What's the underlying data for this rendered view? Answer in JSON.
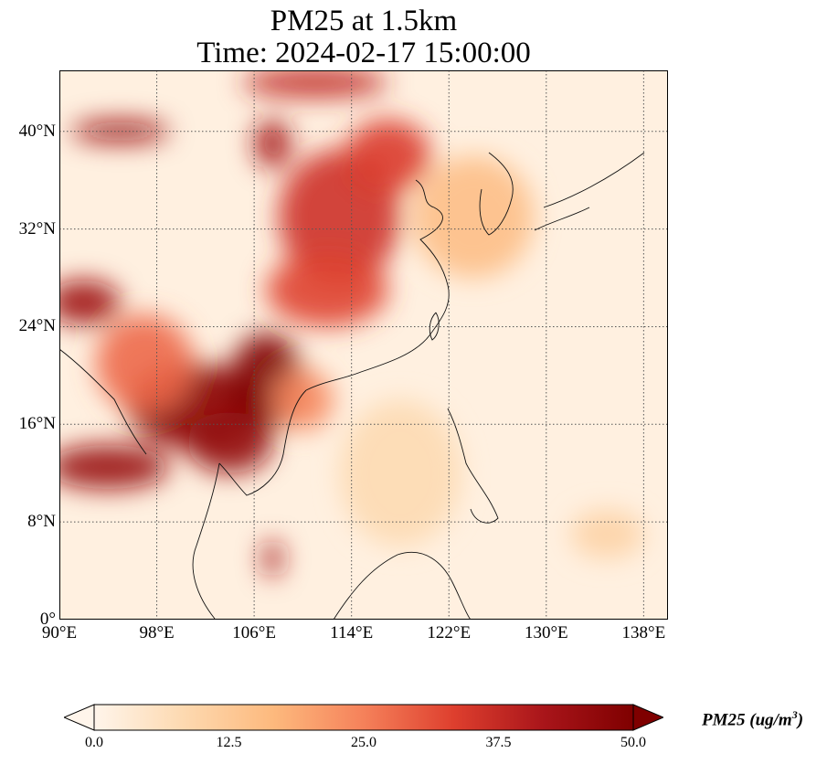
{
  "title": {
    "line1": "PM25 at 1.5km",
    "line2": "Time: 2024-02-17 15:00:00"
  },
  "map": {
    "lon_range": [
      90,
      140
    ],
    "lat_range": [
      0,
      45
    ],
    "lat_ticks": [
      {
        "value": 0,
        "label": "0°"
      },
      {
        "value": 8,
        "label": "8°N"
      },
      {
        "value": 16,
        "label": "16°N"
      },
      {
        "value": 24,
        "label": "24°N"
      },
      {
        "value": 32,
        "label": "32°N"
      },
      {
        "value": 40,
        "label": "40°N"
      }
    ],
    "lon_ticks": [
      {
        "value": 90,
        "label": "90°E"
      },
      {
        "value": 98,
        "label": "98°E"
      },
      {
        "value": 106,
        "label": "106°E"
      },
      {
        "value": 114,
        "label": "114°E"
      },
      {
        "value": 122,
        "label": "122°E"
      },
      {
        "value": 130,
        "label": "130°E"
      },
      {
        "value": 138,
        "label": "138°E"
      }
    ],
    "grid": "dotted",
    "plumes": [
      {
        "lon": 101,
        "lat": 17.5,
        "rlon": 5.5,
        "rlat": 3.5,
        "v": 48
      },
      {
        "lon": 107,
        "lat": 19.5,
        "rlon": 3,
        "rlat": 4,
        "v": 50
      },
      {
        "lon": 104,
        "lat": 14.5,
        "rlon": 3.5,
        "rlat": 2.5,
        "v": 46
      },
      {
        "lon": 94,
        "lat": 12.5,
        "rlon": 5,
        "rlat": 1.8,
        "v": 45
      },
      {
        "lon": 92,
        "lat": 26,
        "rlon": 3,
        "rlat": 1.8,
        "v": 44
      },
      {
        "lon": 95,
        "lat": 40,
        "rlon": 4,
        "rlat": 0.9,
        "v": 45
      },
      {
        "lon": 113,
        "lat": 33,
        "rlon": 5,
        "rlat": 5.5,
        "v": 36
      },
      {
        "lon": 117,
        "lat": 38,
        "rlon": 3.5,
        "rlat": 3,
        "v": 34
      },
      {
        "lon": 112,
        "lat": 27,
        "rlon": 5,
        "rlat": 3,
        "v": 33
      },
      {
        "lon": 111,
        "lat": 44,
        "rlon": 6,
        "rlat": 1.2,
        "v": 38
      },
      {
        "lon": 107.5,
        "lat": 39,
        "rlon": 1.5,
        "rlat": 2,
        "v": 42
      },
      {
        "lon": 107.5,
        "lat": 5,
        "rlon": 0.8,
        "rlat": 1.5,
        "v": 42
      },
      {
        "lon": 110,
        "lat": 18,
        "rlon": 2.5,
        "rlat": 2.5,
        "v": 24
      },
      {
        "lon": 124,
        "lat": 33,
        "rlon": 5,
        "rlat": 5,
        "v": 15
      },
      {
        "lon": 97,
        "lat": 21,
        "rlon": 4,
        "rlat": 4,
        "v": 28
      },
      {
        "lon": 118,
        "lat": 12,
        "rlon": 5,
        "rlat": 6,
        "v": 8
      },
      {
        "lon": 135,
        "lat": 7,
        "rlon": 3,
        "rlat": 2,
        "v": 10
      }
    ]
  },
  "colorbar": {
    "label": "PM25 (ug/m",
    "label_sup": "3",
    "label_close": ")",
    "min": 0,
    "max": 50,
    "extend": "both",
    "ticks": [
      "0.0",
      "12.5",
      "25.0",
      "37.5",
      "50.0"
    ],
    "colors": [
      "#fff5eb",
      "#fdd9b0",
      "#fdb97d",
      "#f5815a",
      "#de3f2e",
      "#a9151a",
      "#7f0000"
    ]
  }
}
